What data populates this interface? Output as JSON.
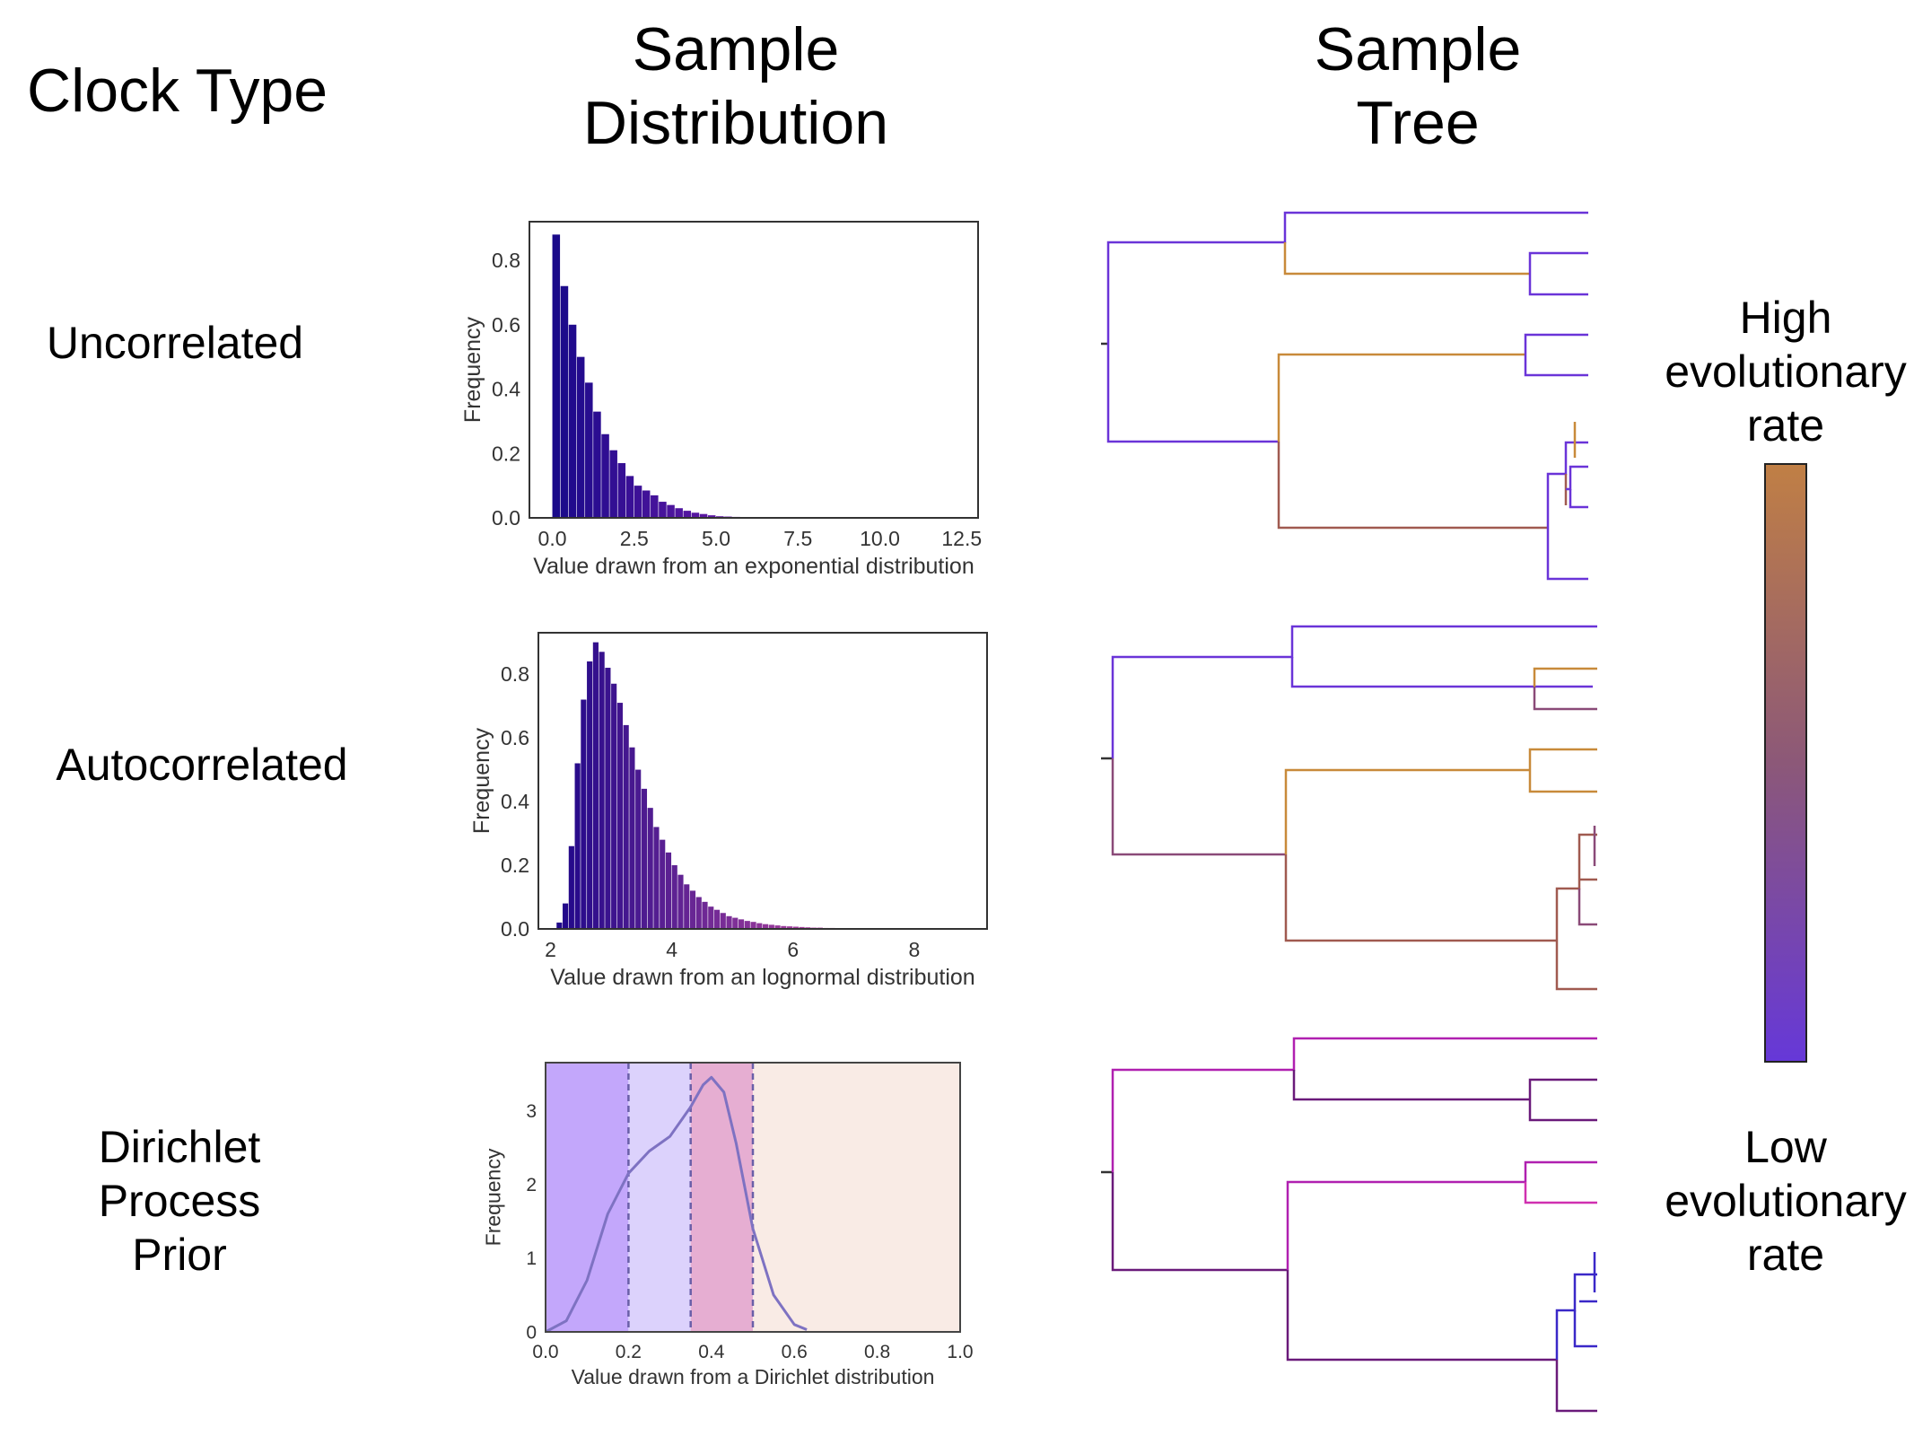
{
  "headers": {
    "clock_type": "Clock Type",
    "sample_distribution_line1": "Sample",
    "sample_distribution_line2": "Distribution",
    "sample_tree_line1": "Sample",
    "sample_tree_line2": "Tree"
  },
  "rows": {
    "uncorrelated": "Uncorrelated",
    "autocorrelated": "Autocorrelated",
    "dirichlet_line1": "Dirichlet",
    "dirichlet_line2": "Process",
    "dirichlet_line3": "Prior"
  },
  "colorbar": {
    "high_line1": "High",
    "high_line2": "evolutionary",
    "high_line3": "rate",
    "low_line1": "Low",
    "low_line2": "evolutionary",
    "low_line3": "rate",
    "color_high": "#c07f45",
    "color_mid": "#8c5878",
    "color_low": "#6638d8"
  },
  "chart_data": [
    {
      "type": "bar",
      "xlabel": "Value drawn from an exponential distribution",
      "ylabel": "Frequency",
      "xlim": [
        -0.7,
        13.0
      ],
      "ylim": [
        0,
        0.92
      ],
      "xticks": [
        "0.0",
        "2.5",
        "5.0",
        "7.5",
        "10.0",
        "12.5"
      ],
      "yticks": [
        "0.0",
        "0.2",
        "0.4",
        "0.6",
        "0.8"
      ],
      "bin_start": 0.0,
      "bin_width": 0.25,
      "values": [
        0.88,
        0.72,
        0.6,
        0.5,
        0.42,
        0.33,
        0.26,
        0.21,
        0.17,
        0.13,
        0.1,
        0.085,
        0.07,
        0.05,
        0.04,
        0.03,
        0.022,
        0.016,
        0.012,
        0.008,
        0.005,
        0.004,
        0.003,
        0.002
      ],
      "color_from": "#1a0a8a",
      "color_to": "#6a1aa8"
    },
    {
      "type": "bar",
      "xlabel": "Value drawn from an lognormal distribution",
      "ylabel": "Frequency",
      "xlim": [
        1.8,
        9.2
      ],
      "ylim": [
        0,
        0.93
      ],
      "xticks": [
        "2",
        "4",
        "6",
        "8"
      ],
      "yticks": [
        "0.0",
        "0.2",
        "0.4",
        "0.6",
        "0.8"
      ],
      "bin_start": 2.1,
      "bin_width": 0.1,
      "values": [
        0.02,
        0.08,
        0.26,
        0.52,
        0.72,
        0.84,
        0.9,
        0.87,
        0.82,
        0.77,
        0.71,
        0.64,
        0.57,
        0.5,
        0.44,
        0.38,
        0.32,
        0.28,
        0.24,
        0.2,
        0.17,
        0.14,
        0.12,
        0.1,
        0.085,
        0.07,
        0.06,
        0.05,
        0.04,
        0.035,
        0.03,
        0.025,
        0.022,
        0.018,
        0.015,
        0.013,
        0.011,
        0.009,
        0.008,
        0.007,
        0.006,
        0.005,
        0.004,
        0.004,
        0.003,
        0.003,
        0.002,
        0.002,
        0.002,
        0.001
      ],
      "color_from": "#20088a",
      "color_to": "#c04aa0"
    },
    {
      "type": "area",
      "xlabel": "Value drawn from a Dirichlet distribution",
      "ylabel": "Frequency",
      "xlim": [
        0.0,
        1.0
      ],
      "ylim": [
        0,
        3.65
      ],
      "xticks": [
        "0.0",
        "0.2",
        "0.4",
        "0.6",
        "0.8",
        "1.0"
      ],
      "yticks": [
        "0",
        "1",
        "2",
        "3"
      ],
      "regions": [
        {
          "from": 0.0,
          "to": 0.2,
          "color": "#c3a7fb"
        },
        {
          "from": 0.2,
          "to": 0.35,
          "color": "#dcd2fc"
        },
        {
          "from": 0.35,
          "to": 0.5,
          "color": "#e6aed2"
        },
        {
          "from": 0.5,
          "to": 1.0,
          "color": "#f9ebe5"
        }
      ],
      "dashed_lines": [
        0.2,
        0.35,
        0.5
      ],
      "x": [
        0.0,
        0.05,
        0.1,
        0.15,
        0.2,
        0.25,
        0.3,
        0.35,
        0.38,
        0.4,
        0.43,
        0.46,
        0.5,
        0.55,
        0.6,
        0.63
      ],
      "y": [
        0.0,
        0.15,
        0.7,
        1.6,
        2.15,
        2.45,
        2.65,
        3.05,
        3.35,
        3.45,
        3.25,
        2.55,
        1.4,
        0.5,
        0.1,
        0.03
      ],
      "line_color": "#7e72c2"
    }
  ]
}
